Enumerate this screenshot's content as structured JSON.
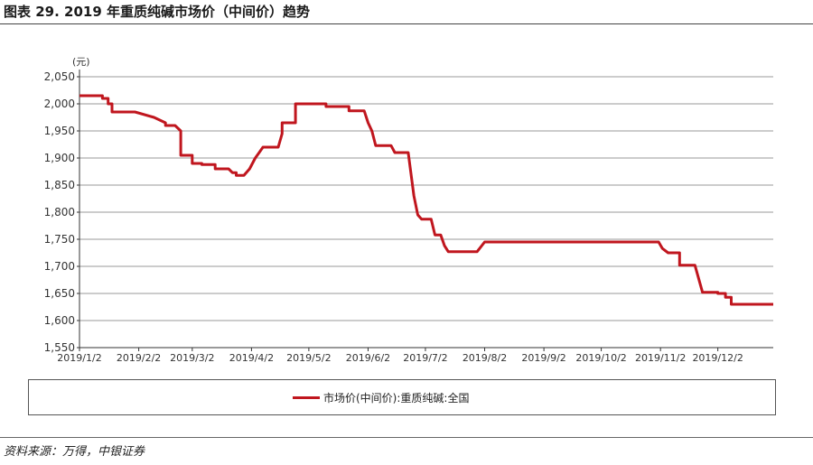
{
  "title": "图表 29. 2019 年重质纯碱市场价（中间价）趋势",
  "source": "资料来源：万得，中银证券",
  "chart_data": {
    "type": "line",
    "unit": "(元)",
    "y_ticks": [
      "1,550",
      "1,600",
      "1,650",
      "1,700",
      "1,750",
      "1,800",
      "1,850",
      "1,900",
      "1,950",
      "2,000",
      "2,050"
    ],
    "x_ticks": [
      "2019/1/2",
      "2019/2/2",
      "2019/3/2",
      "2019/4/2",
      "2019/5/2",
      "2019/6/2",
      "2019/7/2",
      "2019/8/2",
      "2019/9/2",
      "2019/10/2",
      "2019/11/2",
      "2019/12/2"
    ],
    "ylim": [
      1550,
      2050
    ],
    "grid": true,
    "legend_position": "bottom",
    "series": [
      {
        "name": "市场价(中间价):重质纯碱:全国",
        "color": "#c0161e",
        "points": [
          [
            "2019-01-02",
            2015
          ],
          [
            "2019-01-14",
            2015
          ],
          [
            "2019-01-14",
            2010
          ],
          [
            "2019-01-17",
            2010
          ],
          [
            "2019-01-17",
            2000
          ],
          [
            "2019-01-19",
            2000
          ],
          [
            "2019-01-19",
            1985
          ],
          [
            "2019-01-31",
            1985
          ],
          [
            "2019-02-10",
            1975
          ],
          [
            "2019-02-16",
            1965
          ],
          [
            "2019-02-16",
            1960
          ],
          [
            "2019-02-21",
            1960
          ],
          [
            "2019-02-24",
            1950
          ],
          [
            "2019-02-24",
            1905
          ],
          [
            "2019-03-02",
            1905
          ],
          [
            "2019-03-02",
            1890
          ],
          [
            "2019-03-07",
            1890
          ],
          [
            "2019-03-07",
            1888
          ],
          [
            "2019-03-14",
            1888
          ],
          [
            "2019-03-14",
            1880
          ],
          [
            "2019-03-21",
            1880
          ],
          [
            "2019-03-23",
            1873
          ],
          [
            "2019-03-25",
            1873
          ],
          [
            "2019-03-25",
            1868
          ],
          [
            "2019-03-29",
            1868
          ],
          [
            "2019-04-01",
            1880
          ],
          [
            "2019-04-04",
            1900
          ],
          [
            "2019-04-06",
            1910
          ],
          [
            "2019-04-08",
            1920
          ],
          [
            "2019-04-16",
            1920
          ],
          [
            "2019-04-18",
            1945
          ],
          [
            "2019-04-18",
            1965
          ],
          [
            "2019-04-25",
            1965
          ],
          [
            "2019-04-25",
            2000
          ],
          [
            "2019-05-11",
            2000
          ],
          [
            "2019-05-11",
            1995
          ],
          [
            "2019-05-23",
            1995
          ],
          [
            "2019-05-23",
            1987
          ],
          [
            "2019-05-31",
            1987
          ],
          [
            "2019-06-02",
            1965
          ],
          [
            "2019-06-04",
            1950
          ],
          [
            "2019-06-06",
            1923
          ],
          [
            "2019-06-14",
            1923
          ],
          [
            "2019-06-16",
            1910
          ],
          [
            "2019-06-23",
            1910
          ],
          [
            "2019-06-26",
            1830
          ],
          [
            "2019-06-28",
            1795
          ],
          [
            "2019-06-30",
            1787
          ],
          [
            "2019-07-05",
            1787
          ],
          [
            "2019-07-07",
            1758
          ],
          [
            "2019-07-10",
            1758
          ],
          [
            "2019-07-12",
            1738
          ],
          [
            "2019-07-14",
            1727
          ],
          [
            "2019-07-29",
            1727
          ],
          [
            "2019-08-02",
            1745
          ],
          [
            "2019-11-01",
            1745
          ],
          [
            "2019-11-03",
            1733
          ],
          [
            "2019-11-06",
            1725
          ],
          [
            "2019-11-12",
            1725
          ],
          [
            "2019-11-12",
            1702
          ],
          [
            "2019-11-20",
            1702
          ],
          [
            "2019-11-24",
            1652
          ],
          [
            "2019-12-02",
            1652
          ],
          [
            "2019-12-02",
            1650
          ],
          [
            "2019-12-06",
            1650
          ],
          [
            "2019-12-06",
            1643
          ],
          [
            "2019-12-09",
            1643
          ],
          [
            "2019-12-09",
            1630
          ],
          [
            "2019-12-31",
            1630
          ]
        ]
      }
    ]
  }
}
